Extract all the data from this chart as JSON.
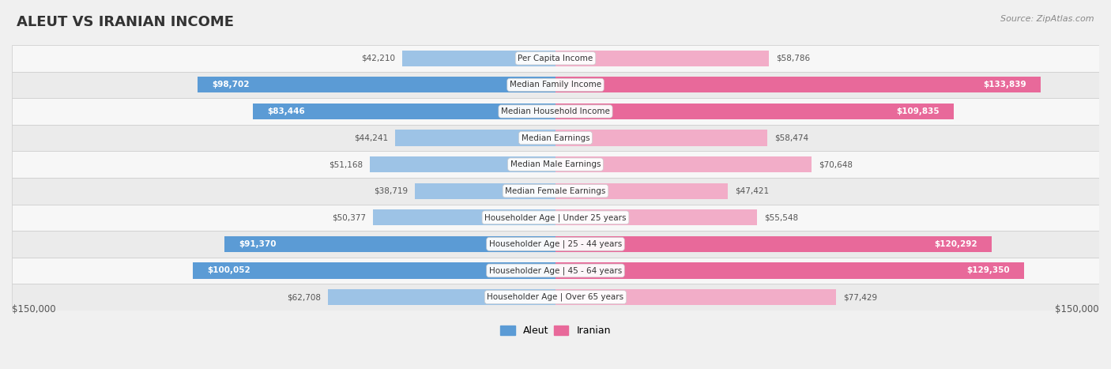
{
  "title": "ALEUT VS IRANIAN INCOME",
  "source": "Source: ZipAtlas.com",
  "categories": [
    "Per Capita Income",
    "Median Family Income",
    "Median Household Income",
    "Median Earnings",
    "Median Male Earnings",
    "Median Female Earnings",
    "Householder Age | Under 25 years",
    "Householder Age | 25 - 44 years",
    "Householder Age | 45 - 64 years",
    "Householder Age | Over 65 years"
  ],
  "aleut_values": [
    42210,
    98702,
    83446,
    44241,
    51168,
    38719,
    50377,
    91370,
    100052,
    62708
  ],
  "iranian_values": [
    58786,
    133839,
    109835,
    58474,
    70648,
    47421,
    55548,
    120292,
    129350,
    77429
  ],
  "aleut_color_strong": "#5b9bd5",
  "aleut_color_light": "#9dc3e6",
  "iranian_color_strong": "#e8699a",
  "iranian_color_light": "#f2adc8",
  "max_value": 150000,
  "label_left": "$150,000",
  "label_right": "$150,000",
  "background_color": "#f0f0f0",
  "row_bg_even": "#f7f7f7",
  "row_bg_odd": "#ebebeb",
  "threshold_strong": 80000
}
